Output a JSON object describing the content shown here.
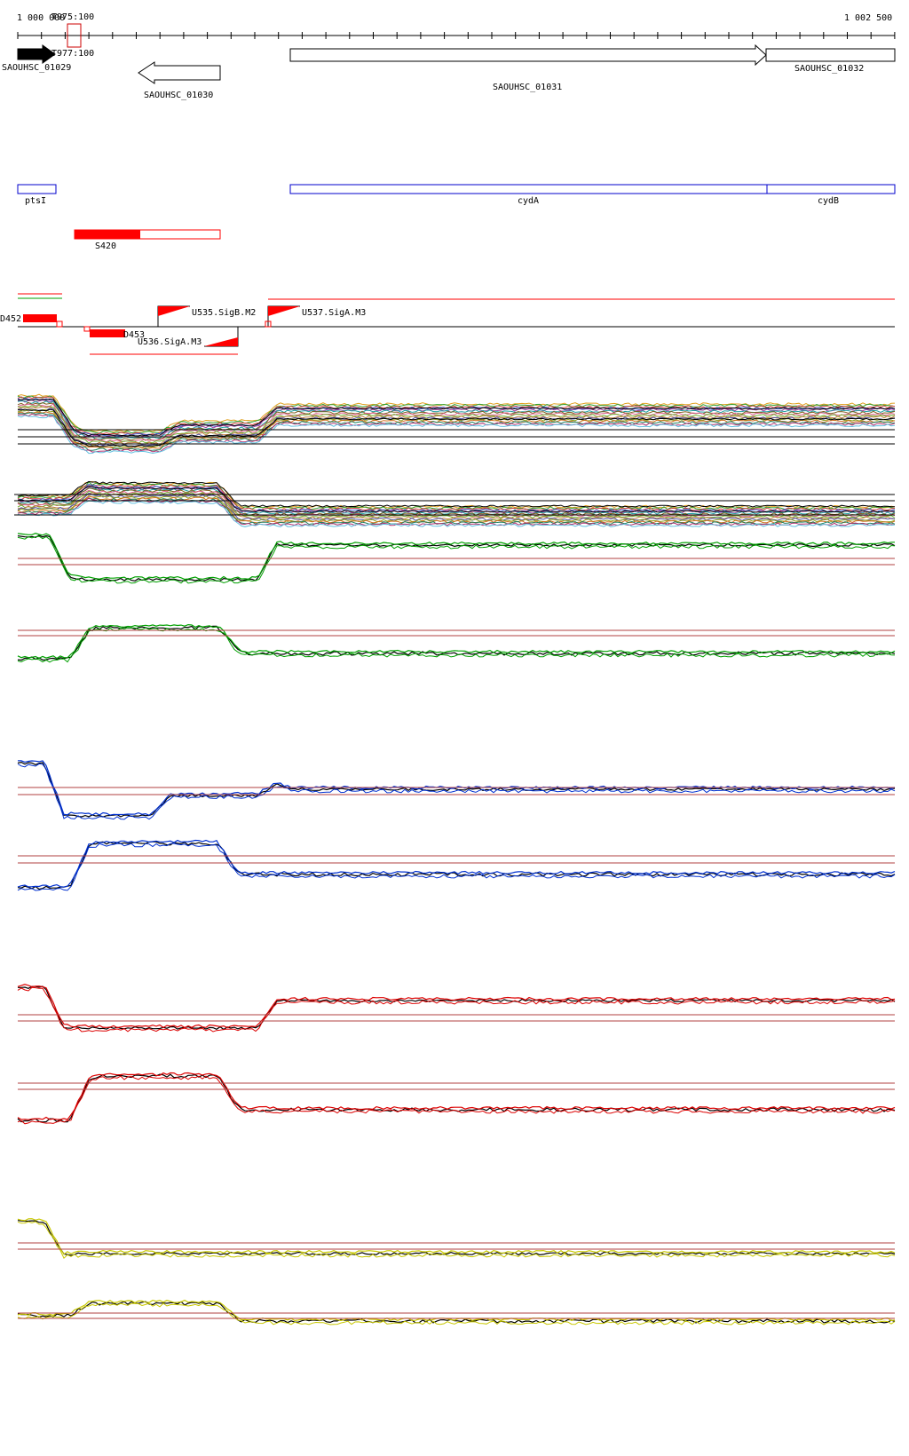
{
  "ruler": {
    "start_label": "1 000 000",
    "end_label": "1 002 500",
    "marker_top_label": "T975:100",
    "marker_bottom_label": "T977:100"
  },
  "genes": [
    {
      "name": "SAOUHSC_01029",
      "strand": "+",
      "filled": true
    },
    {
      "name": "SAOUHSC_01030",
      "strand": "-",
      "filled": false
    },
    {
      "name": "SAOUHSC_01031",
      "strand": "+",
      "filled": false
    },
    {
      "name": "SAOUHSC_01032",
      "strand": "+",
      "filled": false
    }
  ],
  "operons": [
    {
      "name": "ptsI"
    },
    {
      "name": "cydA"
    },
    {
      "name": "cydB"
    }
  ],
  "srna": {
    "name": "S420"
  },
  "tss_features": [
    {
      "name": "D452"
    },
    {
      "name": "D453"
    },
    {
      "name": "U535.SigB.M2"
    },
    {
      "name": "U536.SigA.M3"
    },
    {
      "name": "U537.SigA.M3"
    }
  ],
  "colors": {
    "background": "#ffffff",
    "gene": "#000000",
    "operon": "#0000cc",
    "feature": "#ff0000",
    "threshold": "#b04040",
    "green_group": "#00a000",
    "blue_group": "#0030d0",
    "red_group": "#dd0000",
    "yellow_group": "#c8c800"
  }
}
